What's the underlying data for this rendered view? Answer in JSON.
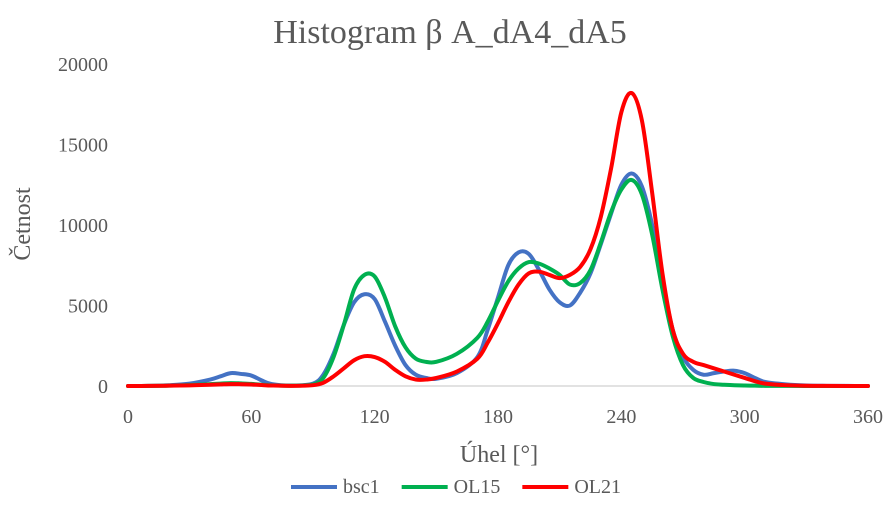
{
  "chart_data": {
    "type": "line",
    "title": "Histogram β A_dA4_dA5",
    "xlabel": "Úhel [°]",
    "ylabel": "Četnost",
    "xlim": [
      0,
      360
    ],
    "ylim": [
      0,
      20000
    ],
    "x_ticks": [
      0,
      60,
      120,
      180,
      240,
      300,
      360
    ],
    "y_ticks": [
      0,
      5000,
      10000,
      15000,
      20000
    ],
    "grid": false,
    "legend_position": "bottom",
    "series": [
      {
        "name": "bsc1",
        "color": "#4472c4",
        "x": [
          0,
          10,
          20,
          30,
          40,
          45,
          50,
          55,
          60,
          65,
          70,
          80,
          90,
          95,
          100,
          105,
          110,
          115,
          120,
          125,
          130,
          135,
          140,
          145,
          150,
          160,
          170,
          175,
          180,
          185,
          190,
          195,
          200,
          205,
          210,
          215,
          220,
          225,
          230,
          235,
          240,
          245,
          250,
          255,
          260,
          265,
          270,
          275,
          280,
          285,
          290,
          295,
          300,
          305,
          310,
          320,
          330,
          340,
          350,
          360
        ],
        "y": [
          0,
          10,
          50,
          150,
          400,
          600,
          800,
          750,
          650,
          350,
          120,
          30,
          150,
          700,
          2000,
          3800,
          5200,
          5700,
          5400,
          4000,
          2500,
          1300,
          700,
          500,
          450,
          800,
          1800,
          3500,
          5500,
          7500,
          8300,
          8200,
          7200,
          6000,
          5200,
          5000,
          5800,
          7000,
          8800,
          10700,
          12500,
          13200,
          12400,
          10000,
          6500,
          3500,
          1800,
          1000,
          700,
          800,
          900,
          950,
          800,
          500,
          250,
          100,
          30,
          10,
          5,
          0
        ]
      },
      {
        "name": "OL15",
        "color": "#00b050",
        "x": [
          0,
          10,
          20,
          30,
          40,
          45,
          50,
          55,
          60,
          65,
          70,
          80,
          90,
          95,
          100,
          105,
          110,
          115,
          120,
          125,
          130,
          135,
          140,
          145,
          150,
          160,
          170,
          175,
          180,
          185,
          190,
          195,
          200,
          205,
          210,
          215,
          220,
          225,
          230,
          235,
          240,
          245,
          250,
          255,
          260,
          265,
          270,
          275,
          280,
          285,
          290,
          295,
          300,
          305,
          310,
          320,
          330,
          340,
          350,
          360
        ],
        "y": [
          0,
          5,
          20,
          60,
          120,
          150,
          180,
          160,
          130,
          80,
          40,
          20,
          100,
          500,
          1800,
          3800,
          6000,
          6900,
          6800,
          5500,
          3700,
          2400,
          1700,
          1500,
          1500,
          2000,
          3000,
          4000,
          5300,
          6500,
          7300,
          7700,
          7600,
          7300,
          6900,
          6300,
          6400,
          7200,
          8900,
          10800,
          12200,
          12800,
          11900,
          9400,
          6000,
          3100,
          1300,
          500,
          250,
          120,
          80,
          50,
          30,
          20,
          10,
          5,
          2,
          1,
          0,
          0
        ]
      },
      {
        "name": "OL21",
        "color": "#ff0000",
        "x": [
          0,
          10,
          20,
          30,
          40,
          45,
          50,
          55,
          60,
          65,
          70,
          80,
          90,
          95,
          100,
          105,
          110,
          115,
          120,
          125,
          130,
          135,
          140,
          145,
          150,
          160,
          170,
          175,
          180,
          185,
          190,
          195,
          200,
          205,
          210,
          215,
          220,
          225,
          230,
          235,
          240,
          245,
          250,
          255,
          260,
          265,
          270,
          275,
          280,
          285,
          290,
          295,
          300,
          305,
          310,
          320,
          330,
          340,
          350,
          360
        ],
        "y": [
          0,
          5,
          20,
          40,
          80,
          100,
          120,
          110,
          90,
          60,
          30,
          10,
          50,
          200,
          600,
          1100,
          1600,
          1850,
          1800,
          1500,
          1000,
          600,
          400,
          400,
          500,
          900,
          1700,
          2700,
          3900,
          5200,
          6300,
          7000,
          7100,
          6900,
          6700,
          6900,
          7400,
          8500,
          10500,
          13500,
          17000,
          18200,
          16500,
          12000,
          7000,
          3500,
          2000,
          1500,
          1300,
          1100,
          900,
          700,
          500,
          300,
          150,
          50,
          15,
          5,
          2,
          0
        ]
      }
    ]
  }
}
